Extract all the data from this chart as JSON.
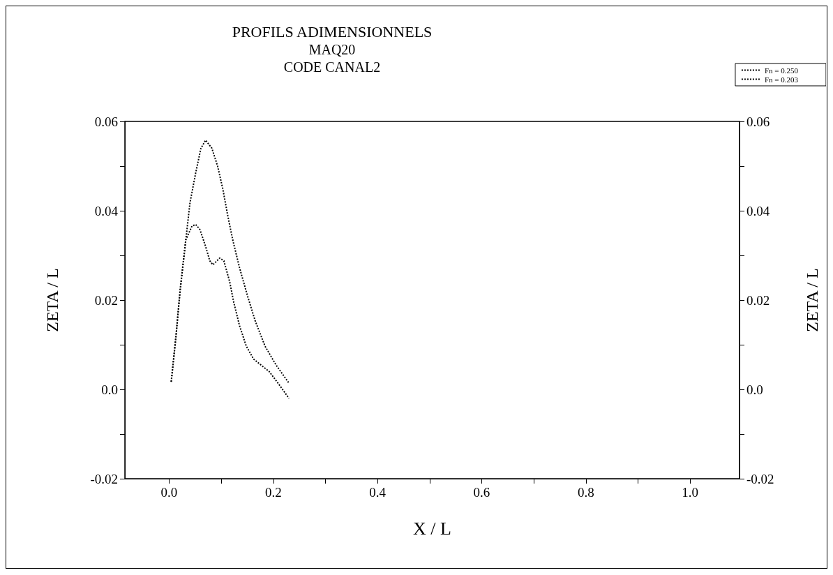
{
  "chart_data": {
    "type": "line",
    "title": "PROFILS ADIMENSIONNELS",
    "subtitle": "MAQ20\nCODE CANAL2",
    "xlabel": "X / L",
    "ylabel": "ZETA / L",
    "y2label": "ZETA / L",
    "series": [
      {
        "name": "Fn = 0.250",
        "color": "#000000",
        "x": [
          0.004,
          0.013,
          0.021,
          0.032,
          0.04,
          0.051,
          0.061,
          0.07,
          0.082,
          0.093,
          0.103,
          0.112,
          0.122,
          0.135,
          0.15,
          0.165,
          0.184,
          0.205,
          0.23
        ],
        "values": [
          0.0017,
          0.0118,
          0.0221,
          0.0335,
          0.0418,
          0.0485,
          0.054,
          0.0558,
          0.054,
          0.05,
          0.0449,
          0.0392,
          0.0335,
          0.0273,
          0.0211,
          0.0154,
          0.0097,
          0.0055,
          0.0014
        ]
      },
      {
        "name": "Fn = 0.203",
        "color": "#000000",
        "x": [
          0.004,
          0.013,
          0.021,
          0.032,
          0.044,
          0.051,
          0.059,
          0.07,
          0.078,
          0.084,
          0.097,
          0.105,
          0.116,
          0.124,
          0.135,
          0.148,
          0.162,
          0.192,
          0.209,
          0.23
        ],
        "values": [
          0.0017,
          0.0118,
          0.0221,
          0.0335,
          0.0366,
          0.0369,
          0.0358,
          0.032,
          0.0288,
          0.0279,
          0.0294,
          0.0288,
          0.0242,
          0.0195,
          0.0143,
          0.0097,
          0.0068,
          0.004,
          0.0014,
          -0.002
        ]
      }
    ],
    "xlim": [
      -0.085,
      1.095
    ],
    "xticks": [
      {
        "value": 0,
        "label": "0.0"
      },
      {
        "value": 0.1,
        "label": null
      },
      0.2,
      {
        "value": 0.3,
        "label": null
      },
      0.4,
      {
        "value": 0.5,
        "label": null
      },
      0.6,
      {
        "value": 0.7,
        "label": null
      },
      0.8,
      {
        "value": 0.9,
        "label": null
      },
      {
        "value": 1,
        "label": "1.0"
      }
    ],
    "ylim": [
      -0.02,
      0.06
    ],
    "yticks": [
      -0.02,
      {
        "value": -0.01,
        "label": null
      },
      {
        "value": 0,
        "label": "0.0"
      },
      {
        "value": 0.01,
        "label": null
      },
      0.02,
      {
        "value": 0.03,
        "label": null
      },
      0.04,
      {
        "value": 0.05,
        "label": null
      },
      0.06
    ],
    "y2lim": [
      -0.02,
      0.06
    ],
    "y2ticks": [
      -0.02,
      {
        "value": -0.01,
        "label": null
      },
      {
        "value": 0,
        "label": "0.0"
      },
      {
        "value": 0.01,
        "label": null
      },
      0.02,
      {
        "value": 0.03,
        "label": null
      },
      0.04,
      {
        "value": 0.05,
        "label": null
      },
      0.06
    ],
    "grid": false,
    "legend": "top right",
    "marker": "none",
    "line_style": "dotted"
  }
}
